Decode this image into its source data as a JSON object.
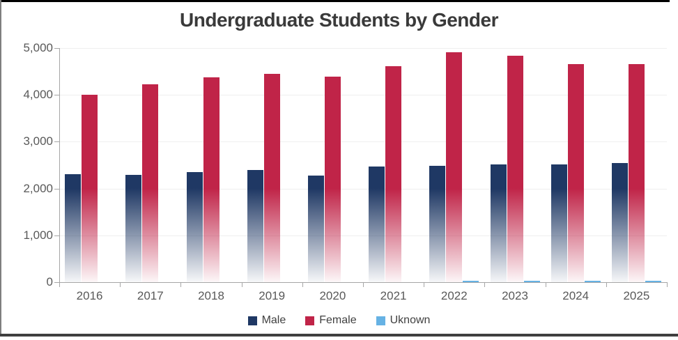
{
  "title": "Undergraduate Students by Gender",
  "chart_data": {
    "type": "bar",
    "title": "Undergraduate Students by Gender",
    "categories": [
      "2016",
      "2017",
      "2018",
      "2019",
      "2020",
      "2021",
      "2022",
      "2023",
      "2024",
      "2025"
    ],
    "series": [
      {
        "name": "Male",
        "color": "#1f3864",
        "fade": true,
        "values": [
          2310,
          2285,
          2345,
          2395,
          2275,
          2465,
          2490,
          2520,
          2520,
          2545
        ]
      },
      {
        "name": "Female",
        "color": "#c02448",
        "fade": true,
        "values": [
          4000,
          4225,
          4370,
          4450,
          4385,
          4620,
          4915,
          4830,
          4660,
          4660
        ]
      },
      {
        "name": "Uknown",
        "color": "#66b2e4",
        "fade": false,
        "values": [
          0,
          0,
          0,
          0,
          0,
          0,
          30,
          30,
          30,
          30
        ]
      }
    ],
    "xlabel": "",
    "ylabel": "",
    "ylim": [
      0,
      5000
    ],
    "ytick_values": [
      0,
      1000,
      2000,
      3000,
      4000,
      5000
    ],
    "ytick_labels": [
      "0",
      "1,000",
      "2,000",
      "3,000",
      "4,000",
      "5,000"
    ],
    "grid": true,
    "legend_position": "bottom"
  }
}
